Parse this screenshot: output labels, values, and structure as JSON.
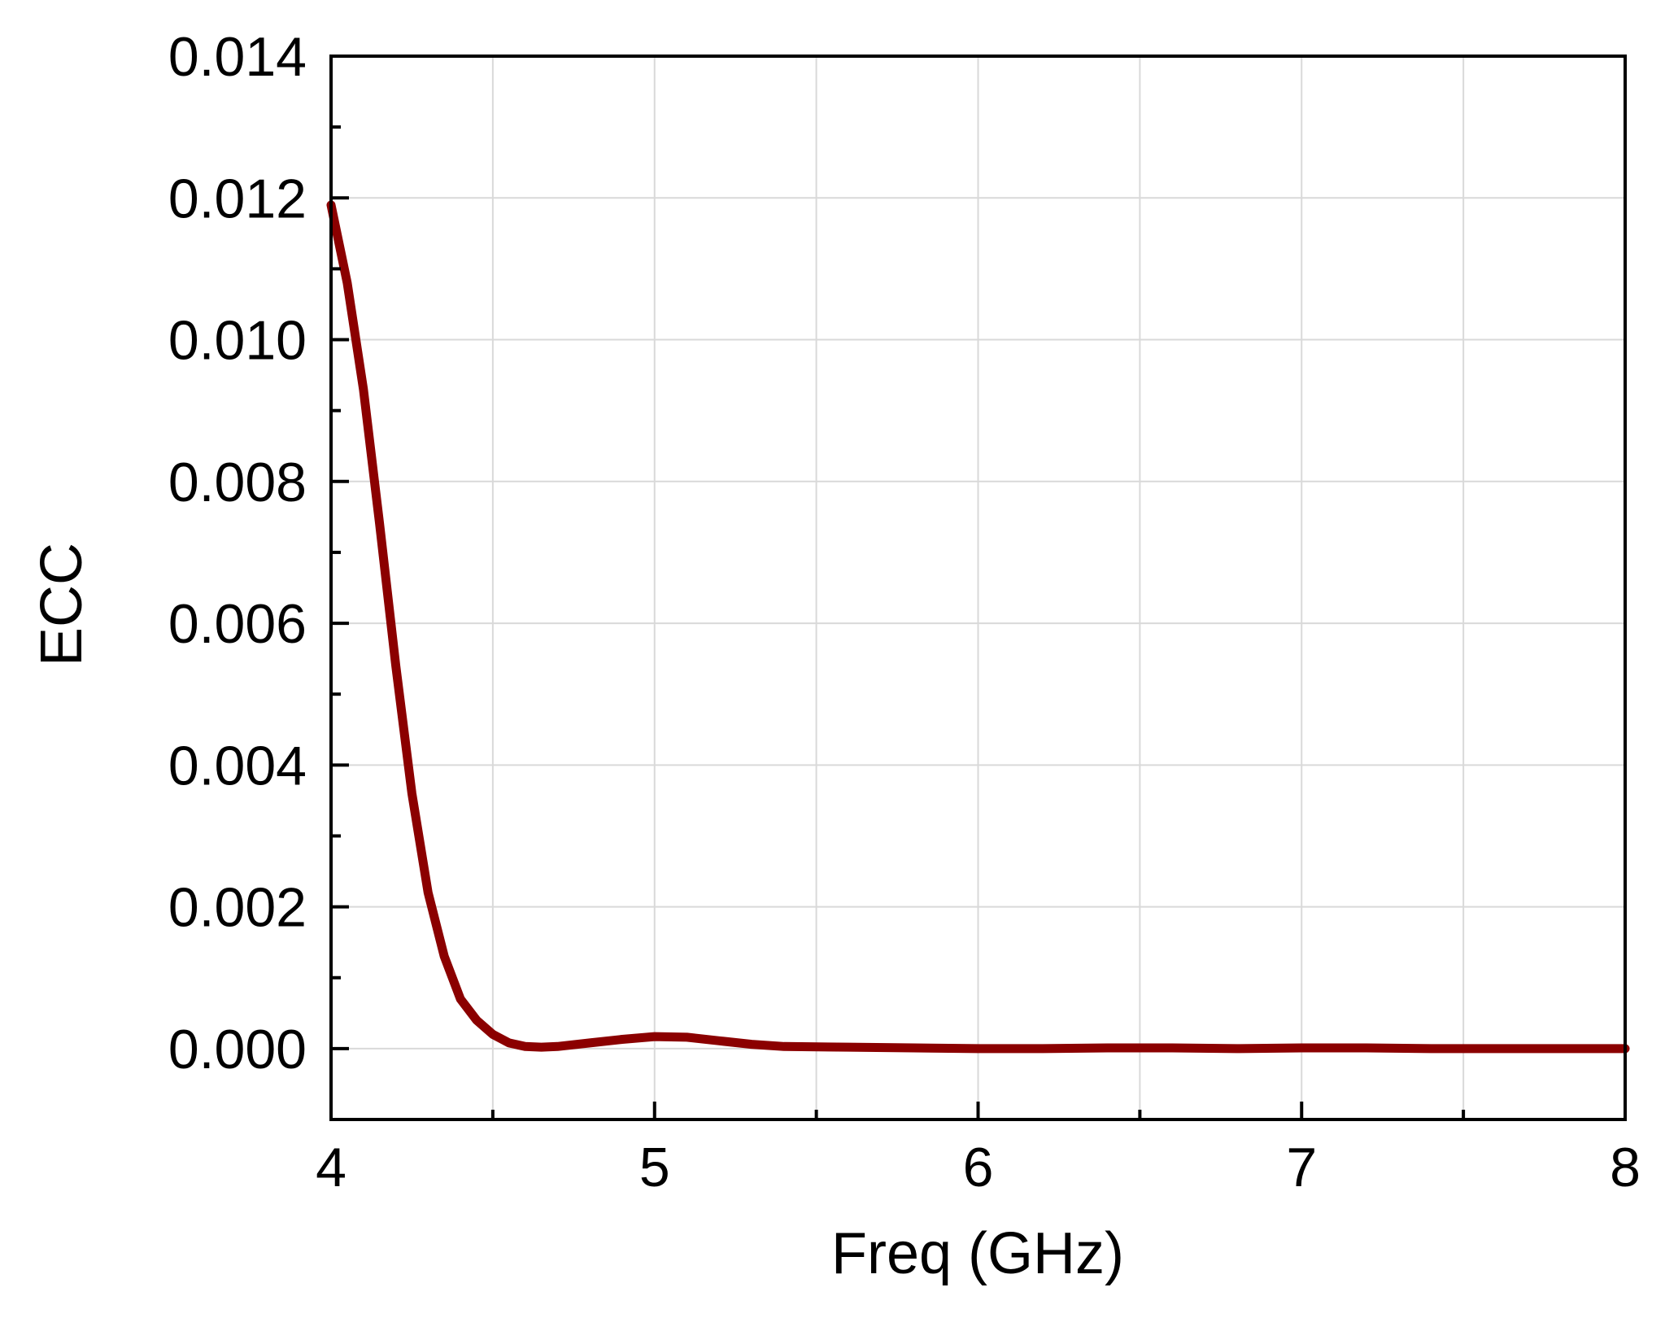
{
  "chart_data": {
    "type": "line",
    "title": "",
    "xlabel": "Freq (GHz)",
    "ylabel": "ECC",
    "xlim": [
      4,
      8
    ],
    "ylim": [
      -0.001,
      0.014
    ],
    "x_ticks": [
      4,
      5,
      6,
      7,
      8
    ],
    "x_tick_labels": [
      "4",
      "5",
      "6",
      "7",
      "8"
    ],
    "y_ticks": [
      0,
      0.002,
      0.004,
      0.006,
      0.008,
      0.01,
      0.012,
      0.014
    ],
    "y_tick_labels": [
      "0.000",
      "0.002",
      "0.004",
      "0.006",
      "0.008",
      "0.010",
      "0.012",
      "0.014"
    ],
    "grid": true,
    "legend": "none",
    "series": [
      {
        "color": "#8b0000",
        "x": [
          4.0,
          4.05,
          4.1,
          4.15,
          4.2,
          4.25,
          4.3,
          4.35,
          4.4,
          4.45,
          4.5,
          4.55,
          4.6,
          4.65,
          4.7,
          4.8,
          4.9,
          5.0,
          5.1,
          5.2,
          5.3,
          5.4,
          5.6,
          5.8,
          6.0,
          6.2,
          6.4,
          6.6,
          6.8,
          7.0,
          7.2,
          7.4,
          7.6,
          7.8,
          8.0
        ],
        "y": [
          0.0119,
          0.0108,
          0.0093,
          0.0074,
          0.0054,
          0.0036,
          0.0022,
          0.0013,
          0.0007,
          0.0004,
          0.0002,
          8e-05,
          3e-05,
          2e-05,
          3e-05,
          8e-05,
          0.00013,
          0.00017,
          0.00016,
          0.00011,
          6e-05,
          3e-05,
          2e-05,
          1e-05,
          0.0,
          0.0,
          1e-05,
          1e-05,
          0.0,
          1e-05,
          1e-05,
          0.0,
          0.0,
          0.0,
          0.0
        ]
      }
    ]
  }
}
